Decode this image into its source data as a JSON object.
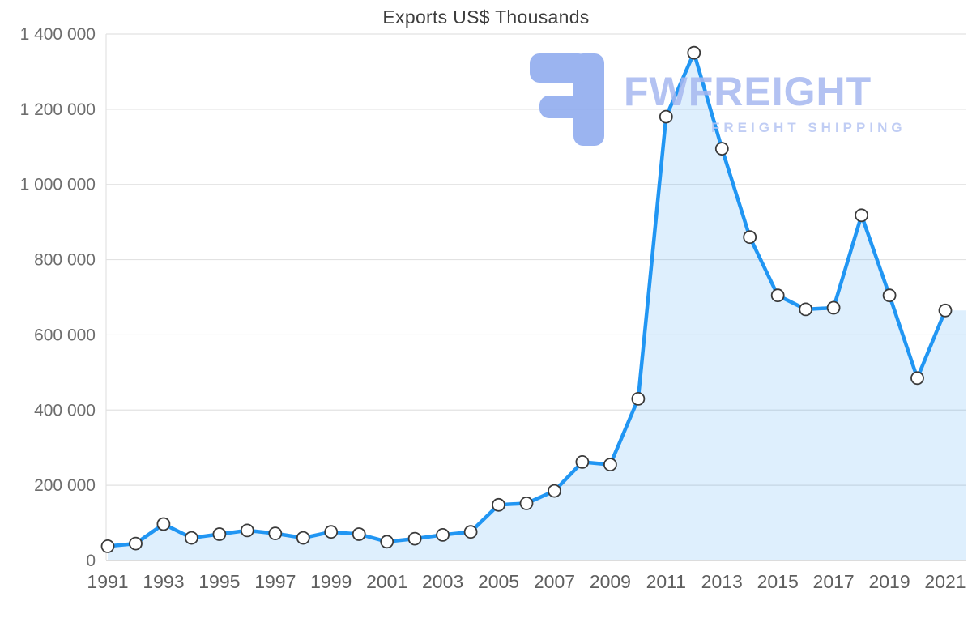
{
  "chart_data": {
    "type": "line",
    "title": "Exports US$ Thousands",
    "xlabel": "",
    "ylabel": "Exports US$ Thousands",
    "grid": true,
    "legend": false,
    "x": [
      1991,
      1992,
      1993,
      1994,
      1995,
      1996,
      1997,
      1998,
      1999,
      2000,
      2001,
      2002,
      2003,
      2004,
      2005,
      2006,
      2007,
      2008,
      2009,
      2010,
      2011,
      2012,
      2013,
      2014,
      2015,
      2016,
      2017,
      2018,
      2019,
      2020,
      2021
    ],
    "series": [
      {
        "name": "Exports US$ Thousands",
        "values": [
          38000,
          45000,
          97000,
          60000,
          70000,
          80000,
          72000,
          60000,
          76000,
          70000,
          50000,
          58000,
          68000,
          76000,
          148000,
          152000,
          185000,
          262000,
          255000,
          430000,
          1180000,
          1350000,
          1095000,
          860000,
          705000,
          668000,
          672000,
          918000,
          705000,
          485000,
          665000
        ]
      }
    ],
    "ylim": [
      0,
      1400000
    ],
    "yticks": [
      {
        "value": 0,
        "label": "0"
      },
      {
        "value": 200000,
        "label": "200 000"
      },
      {
        "value": 400000,
        "label": "400 000"
      },
      {
        "value": 600000,
        "label": "600 000"
      },
      {
        "value": 800000,
        "label": "800 000"
      },
      {
        "value": 1000000,
        "label": "1 000 000"
      },
      {
        "value": 1200000,
        "label": "1 200 000"
      },
      {
        "value": 1400000,
        "label": "1 400 000"
      }
    ],
    "xtick_labels": [
      "1991",
      "1993",
      "1995",
      "1997",
      "1999",
      "2001",
      "2003",
      "2005",
      "2007",
      "2009",
      "2011",
      "2013",
      "2015",
      "2017",
      "2019",
      "2021"
    ],
    "line_color": "#2196f3",
    "fill_color": "#2196f3",
    "fill_opacity": 0.15,
    "grid_color": "#e2e2e2",
    "axis_color": "#c7c7c7",
    "marker": {
      "fill": "#ffffff",
      "stroke": "#3a3a3a"
    }
  },
  "watermark": {
    "brand": "FWFREIGHT",
    "subtitle": "FREIGHT SHIPPING",
    "brand_color": "#a6b8f0",
    "logo_color": "#8aa7ee"
  }
}
